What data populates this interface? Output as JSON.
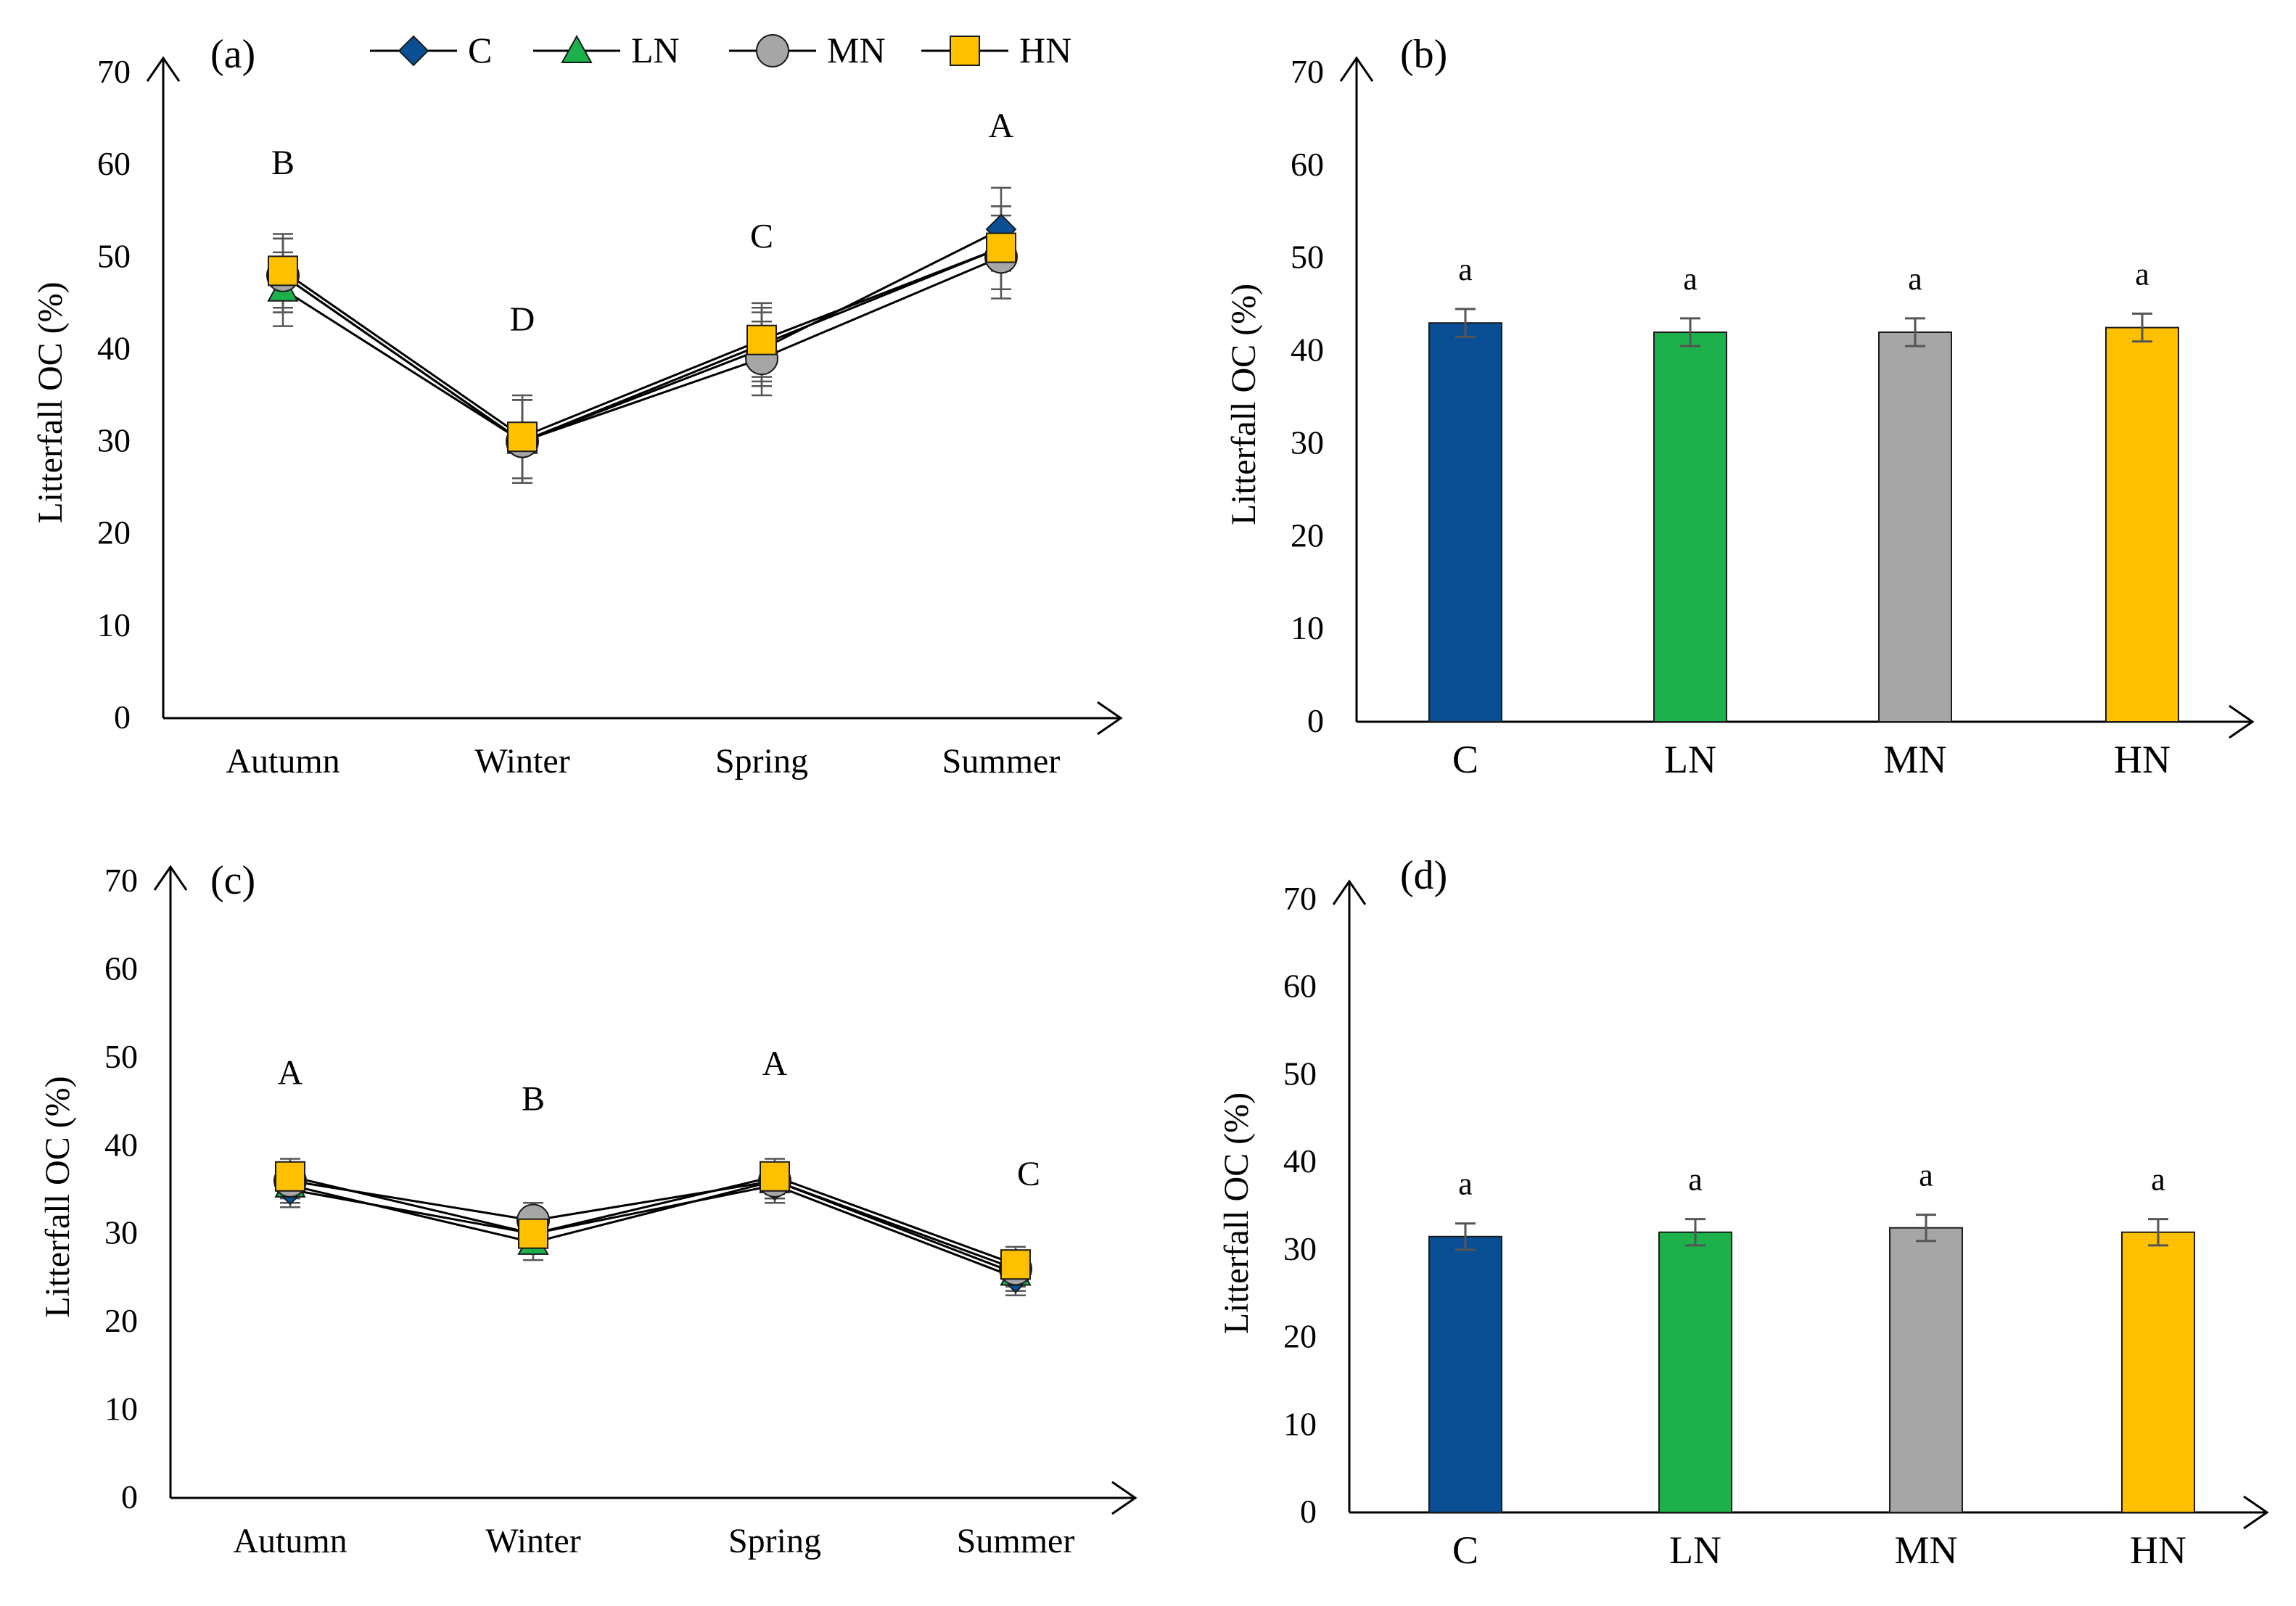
{
  "colors": {
    "C": "#0a4f94",
    "LN": "#1db14b",
    "MN": "#a6a6a6",
    "HN": "#ffc000",
    "axis": "#000000",
    "error": "#555555"
  },
  "chart_data": [
    {
      "id": "a",
      "type": "line",
      "panel_label": "(a)",
      "ylabel": "Litterfall OC (%)",
      "xlabel": "",
      "ylim": [
        0,
        70
      ],
      "yticks": [
        0,
        10,
        20,
        30,
        40,
        50,
        60,
        70
      ],
      "categories": [
        "Autumn",
        "Winter",
        "Spring",
        "Summer"
      ],
      "series": [
        {
          "name": "C",
          "marker": "diamond",
          "values": [
            48,
            30,
            40,
            53
          ],
          "errors": [
            4,
            4.5,
            4,
            4.5
          ]
        },
        {
          "name": "LN",
          "marker": "triangle",
          "values": [
            46.5,
            30,
            40.5,
            51
          ],
          "errors": [
            4,
            4.5,
            4,
            4.5
          ]
        },
        {
          "name": "MN",
          "marker": "circle",
          "values": [
            48,
            30,
            39,
            50
          ],
          "errors": [
            4,
            4.5,
            4,
            4.5
          ]
        },
        {
          "name": "HN",
          "marker": "square",
          "values": [
            48.5,
            30.5,
            41,
            51
          ],
          "errors": [
            4,
            4.5,
            4,
            4.5
          ]
        }
      ],
      "annotations": [
        {
          "category": "Autumn",
          "text": "B",
          "y": 59
        },
        {
          "category": "Winter",
          "text": "D",
          "y": 42
        },
        {
          "category": "Spring",
          "text": "C",
          "y": 51
        },
        {
          "category": "Summer",
          "text": "A",
          "y": 63
        }
      ],
      "legend": {
        "position": "top",
        "entries": [
          "C",
          "LN",
          "MN",
          "HN"
        ]
      }
    },
    {
      "id": "b",
      "type": "bar",
      "panel_label": "(b)",
      "ylabel": "Litterfall OC (%)",
      "xlabel": "",
      "ylim": [
        0,
        70
      ],
      "yticks": [
        0,
        10,
        20,
        30,
        40,
        50,
        60,
        70
      ],
      "categories": [
        "C",
        "LN",
        "MN",
        "HN"
      ],
      "values": [
        43,
        42,
        42,
        42.5
      ],
      "errors": [
        1.5,
        1.5,
        1.5,
        1.5
      ],
      "labels": [
        "a",
        "a",
        "a",
        "a"
      ]
    },
    {
      "id": "c",
      "type": "line",
      "panel_label": "(c)",
      "ylabel": "Litterfall OC (%)",
      "xlabel": "",
      "ylim": [
        0,
        70
      ],
      "yticks": [
        0,
        10,
        20,
        30,
        40,
        50,
        60,
        70
      ],
      "categories": [
        "Autumn",
        "Winter",
        "Spring",
        "Summer"
      ],
      "series": [
        {
          "name": "C",
          "marker": "diamond",
          "values": [
            35,
            30,
            35.5,
            25
          ],
          "errors": [
            2,
            2,
            2,
            2
          ]
        },
        {
          "name": "LN",
          "marker": "triangle",
          "values": [
            35.5,
            29,
            36,
            25.5
          ],
          "errors": [
            2,
            2,
            2,
            2
          ]
        },
        {
          "name": "MN",
          "marker": "circle",
          "values": [
            36,
            31.5,
            36,
            26
          ],
          "errors": [
            2,
            2,
            2,
            2
          ]
        },
        {
          "name": "HN",
          "marker": "square",
          "values": [
            36.5,
            30,
            36.5,
            26.5
          ],
          "errors": [
            2,
            2,
            2,
            2
          ]
        }
      ],
      "annotations": [
        {
          "category": "Autumn",
          "text": "A",
          "y": 47
        },
        {
          "category": "Winter",
          "text": "B",
          "y": 44
        },
        {
          "category": "Spring",
          "text": "A",
          "y": 48
        },
        {
          "category": "Summer",
          "text": "C",
          "y": 35.5
        }
      ]
    },
    {
      "id": "d",
      "type": "bar",
      "panel_label": "(d)",
      "ylabel": "Litterfall OC (%)",
      "xlabel": "",
      "ylim": [
        0,
        70
      ],
      "yticks": [
        0,
        10,
        20,
        30,
        40,
        50,
        60,
        70
      ],
      "categories": [
        "C",
        "LN",
        "MN",
        "HN"
      ],
      "values": [
        31.5,
        32,
        32.5,
        32
      ],
      "errors": [
        1.5,
        1.5,
        1.5,
        1.5
      ],
      "labels": [
        "a",
        "a",
        "a",
        "a"
      ]
    }
  ]
}
